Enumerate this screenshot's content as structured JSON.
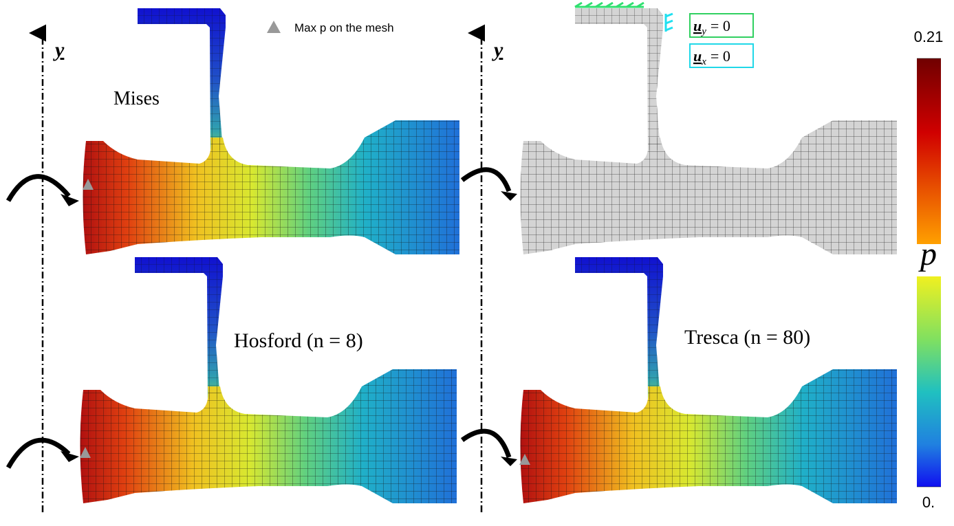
{
  "legend": {
    "marker_label": "Max p on the mesh"
  },
  "axis_label": "y",
  "panels": [
    {
      "label": "Mises"
    },
    {
      "label": "Hosford (n = 8)"
    },
    {
      "label": "Tresca (n = 80)"
    }
  ],
  "boundary_conditions": [
    {
      "symbol": "u",
      "subscript": "y",
      "rhs": "= 0"
    },
    {
      "symbol": "u",
      "subscript": "x",
      "rhs": "= 0"
    }
  ],
  "colorbar": {
    "label": "p",
    "max": 0.21,
    "min": {
      "value": 0,
      "label": "0."
    }
  }
}
